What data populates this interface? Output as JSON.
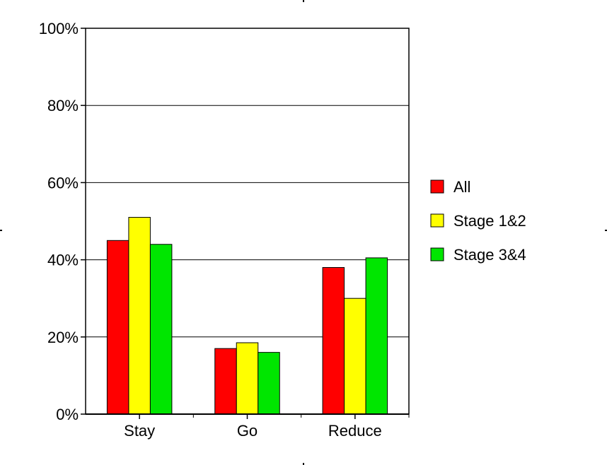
{
  "chart_data": {
    "type": "bar",
    "categories": [
      "Stay",
      "Go",
      "Reduce"
    ],
    "series": [
      {
        "name": "All",
        "values": [
          45,
          17,
          38
        ],
        "color": "#ff0000"
      },
      {
        "name": "Stage 1&2",
        "values": [
          51,
          18.5,
          30
        ],
        "color": "#ffff00"
      },
      {
        "name": "Stage 3&4",
        "values": [
          44,
          16,
          40.5
        ],
        "color": "#00e600"
      }
    ],
    "ylim": [
      0,
      100
    ],
    "yticks": [
      0,
      20,
      40,
      60,
      80,
      100
    ],
    "ytick_labels": [
      "0%",
      "20%",
      "40%",
      "60%",
      "80%",
      "100%"
    ],
    "grid": true,
    "legend_position": "right",
    "title": "",
    "xlabel": "",
    "ylabel": ""
  }
}
